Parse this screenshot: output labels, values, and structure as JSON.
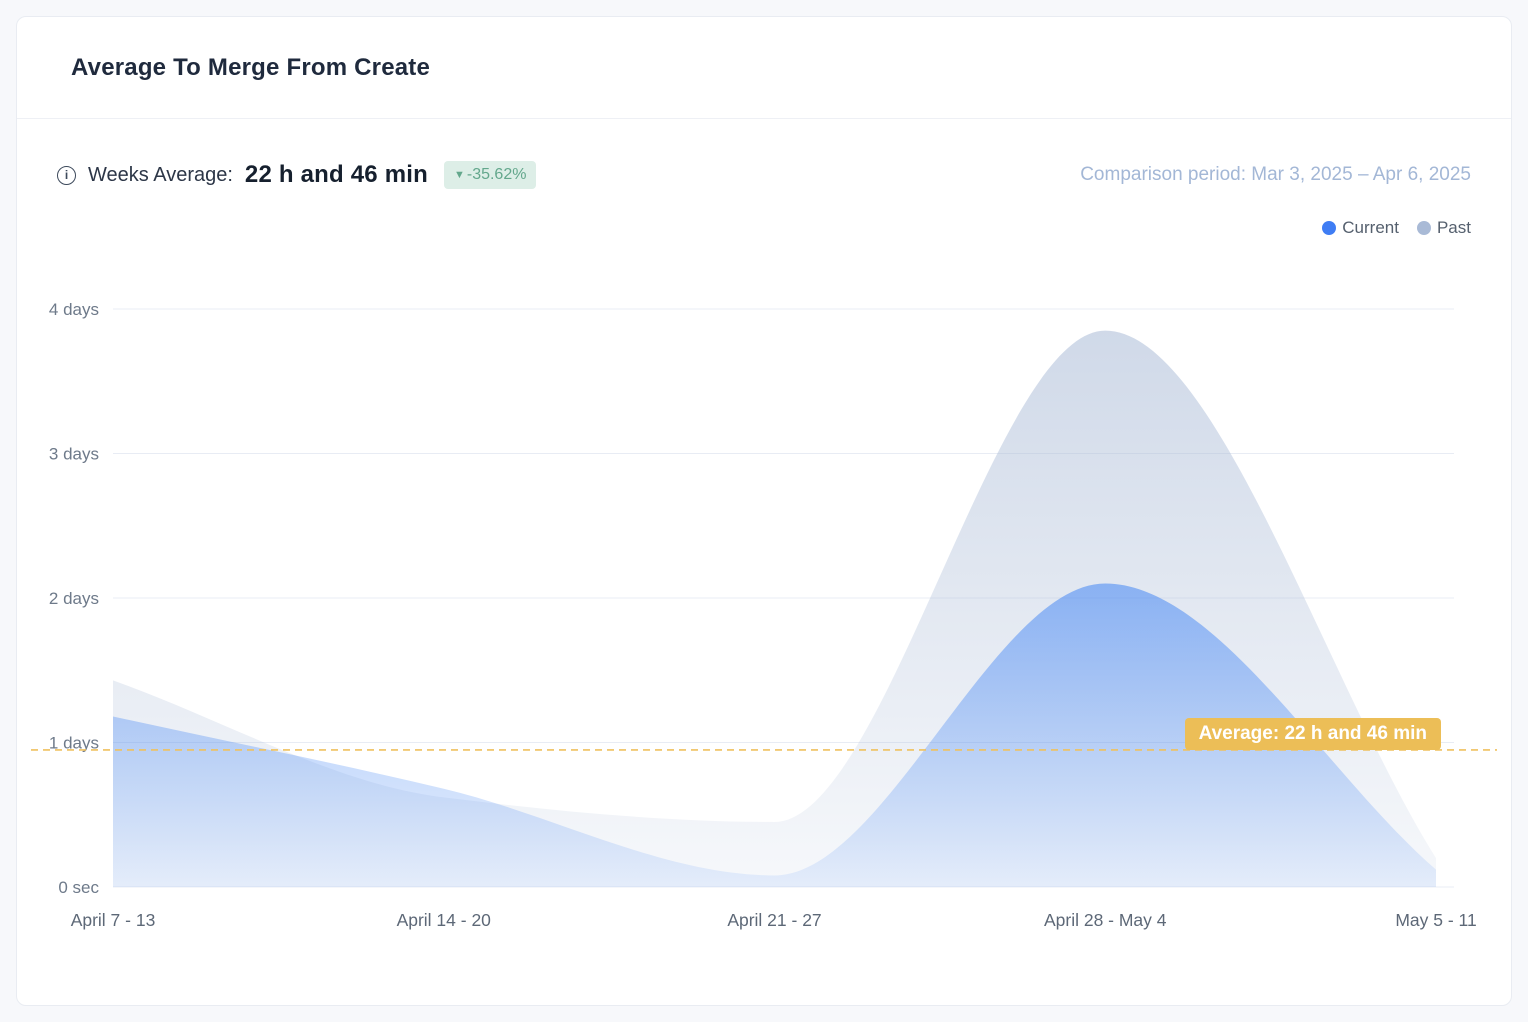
{
  "card": {
    "title": "Average To Merge From Create",
    "stats": {
      "label": "Weeks Average:",
      "value": "22 h and 46 min",
      "delta_arrow": "▼",
      "delta": "-35.62%",
      "delta_bg": "#ddeee7",
      "delta_color": "#63a78c",
      "comparison": "Comparison period: Mar 3, 2025 – Apr 6, 2025"
    },
    "legend": [
      {
        "label": "Current",
        "color": "#3f7df4"
      },
      {
        "label": "Past",
        "color": "#a9bad6"
      }
    ]
  },
  "chart_data": {
    "type": "area",
    "title": "Average To Merge From Create",
    "categories": [
      "April 7 - 13",
      "April 14 - 20",
      "April 21 - 27",
      "April 28 - May 4",
      "May 5 - 11"
    ],
    "series": [
      {
        "name": "Past",
        "unit": "days",
        "values": [
          1.43,
          0.62,
          0.45,
          3.85,
          0.2
        ],
        "color": "#a9bad6"
      },
      {
        "name": "Current",
        "unit": "days",
        "values": [
          1.18,
          0.68,
          0.08,
          2.1,
          0.12
        ],
        "color": "#4285f4"
      }
    ],
    "y_ticks": [
      {
        "label": "4 days",
        "value": 4
      },
      {
        "label": "3 days",
        "value": 3
      },
      {
        "label": "2 days",
        "value": 2
      },
      {
        "label": "1 days",
        "value": 1
      },
      {
        "label": "0 sec",
        "value": 0
      }
    ],
    "ylim": [
      0,
      4.3
    ],
    "grid": true,
    "legend_position": "top-right",
    "average_line": {
      "value_days": 0.9486,
      "label": "Average: 22 h and 46 min",
      "color": "#efc15e"
    }
  }
}
